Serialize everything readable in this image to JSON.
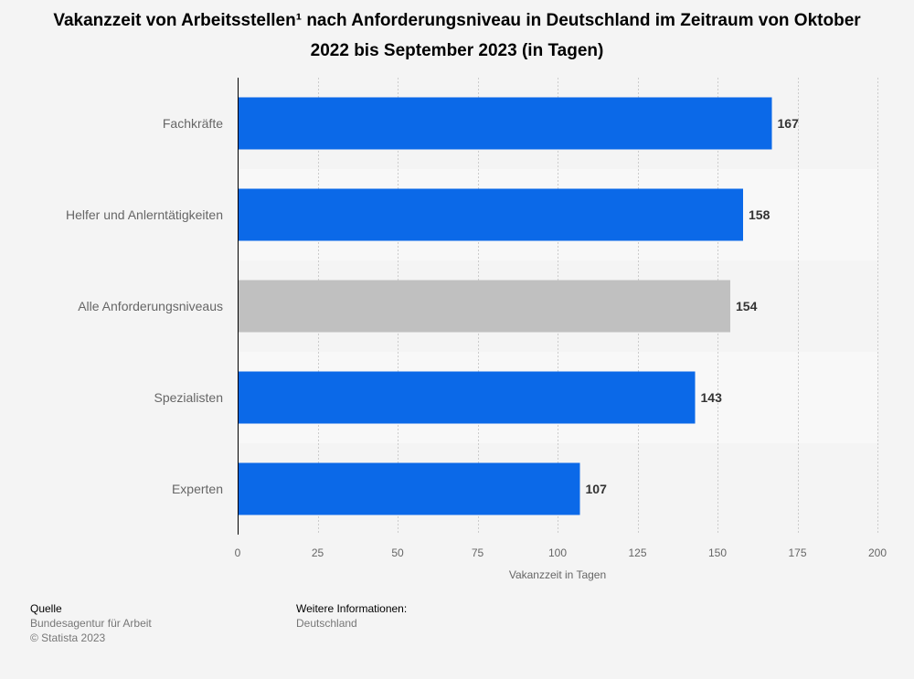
{
  "title": "Vakanzzeit von Arbeitsstellen¹ nach Anforderungsniveau in Deutschland im Zeitraum von Oktober 2022 bis September 2023 (in Tagen)",
  "colors": {
    "bar": "#0b69e8",
    "highlight": "#c0c0c0",
    "band": "#f8f8f8",
    "grid": "#cccccc",
    "axis": "#000000"
  },
  "chart_data": {
    "type": "bar",
    "orientation": "horizontal",
    "categories": [
      "Fachkräfte",
      "Helfer und Anlerntätigkeiten",
      "Alle Anforderungsniveaus",
      "Spezialisten",
      "Experten"
    ],
    "values": [
      167,
      158,
      154,
      143,
      107
    ],
    "highlighted_category": "Alle Anforderungsniveaus",
    "xlabel": "Vakanzzeit in Tagen",
    "ylabel": "",
    "xlim": [
      0,
      200
    ],
    "ticks": [
      0,
      25,
      50,
      75,
      100,
      125,
      150,
      175,
      200
    ],
    "grid": true,
    "data_labels": true
  },
  "footer": {
    "source_heading": "Quelle",
    "source": "Bundesagentur für Arbeit",
    "copyright": "© Statista 2023",
    "info_heading": "Weitere Informationen:",
    "info": "Deutschland"
  }
}
